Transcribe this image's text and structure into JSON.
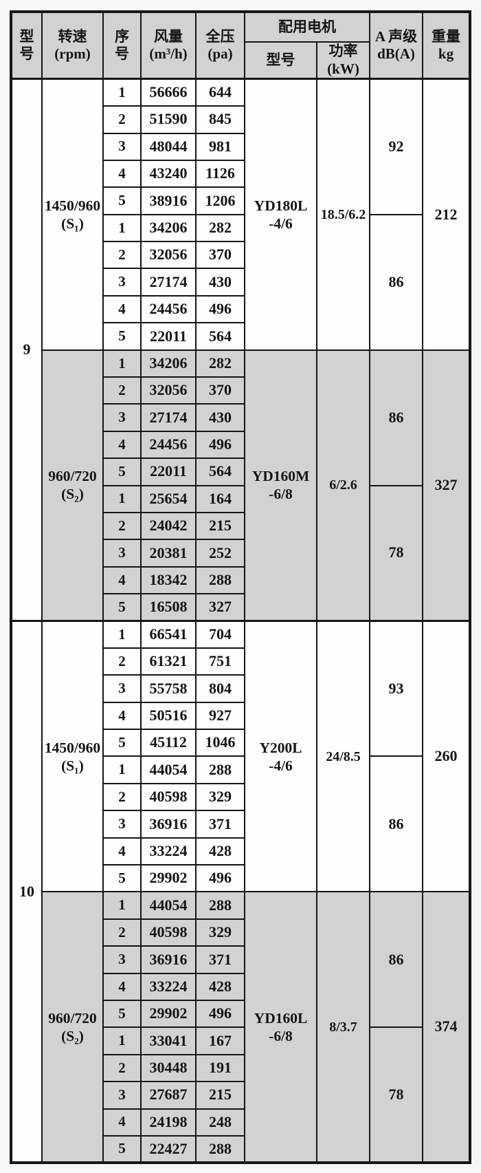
{
  "document": {
    "type": "fan-specification-table",
    "colors": {
      "border": "#151515",
      "shaded_fill": "#d2d2d2",
      "cell_fill": "#fefefe",
      "page_background": "#f6f6f5"
    }
  },
  "table": {
    "header": {
      "model": "型\n号",
      "speed": "转速\n(rpm)",
      "serial": "序\n号",
      "airflow": "风量\n(m³/h)",
      "pressure": "全压\n(pa)",
      "motor_group": "配用电机",
      "motor_model": "型号",
      "power": "功率\n(kW)",
      "noise": "A 声级\ndB(A)",
      "weight": "重量\nkg"
    },
    "models": [
      {
        "model": "9",
        "sections": [
          {
            "speed": "1450/960\n(S₁)",
            "shaded": false,
            "rows": [
              [
                "1",
                "56666",
                "644"
              ],
              [
                "2",
                "51590",
                "845"
              ],
              [
                "3",
                "48044",
                "981"
              ],
              [
                "4",
                "43240",
                "1126"
              ],
              [
                "5",
                "38916",
                "1206"
              ],
              [
                "1",
                "34206",
                "282"
              ],
              [
                "2",
                "32056",
                "370"
              ],
              [
                "3",
                "27174",
                "430"
              ],
              [
                "4",
                "24456",
                "496"
              ],
              [
                "5",
                "22011",
                "564"
              ]
            ],
            "motor": "YD180L\n-4/6",
            "power": "18.5/6.2",
            "noise": [
              "92",
              "86"
            ],
            "weight": "212"
          },
          {
            "speed": "960/720\n(S₂)",
            "shaded": true,
            "rows": [
              [
                "1",
                "34206",
                "282"
              ],
              [
                "2",
                "32056",
                "370"
              ],
              [
                "3",
                "27174",
                "430"
              ],
              [
                "4",
                "24456",
                "496"
              ],
              [
                "5",
                "22011",
                "564"
              ],
              [
                "1",
                "25654",
                "164"
              ],
              [
                "2",
                "24042",
                "215"
              ],
              [
                "3",
                "20381",
                "252"
              ],
              [
                "4",
                "18342",
                "288"
              ],
              [
                "5",
                "16508",
                "327"
              ]
            ],
            "motor": "YD160M\n-6/8",
            "power": "6/2.6",
            "noise": [
              "86",
              "78"
            ],
            "weight": "327"
          }
        ]
      },
      {
        "model": "10",
        "sections": [
          {
            "speed": "1450/960\n(S₁)",
            "shaded": false,
            "rows": [
              [
                "1",
                "66541",
                "704"
              ],
              [
                "2",
                "61321",
                "751"
              ],
              [
                "3",
                "55758",
                "804"
              ],
              [
                "4",
                "50516",
                "927"
              ],
              [
                "5",
                "45112",
                "1046"
              ],
              [
                "1",
                "44054",
                "288"
              ],
              [
                "2",
                "40598",
                "329"
              ],
              [
                "3",
                "36916",
                "371"
              ],
              [
                "4",
                "33224",
                "428"
              ],
              [
                "5",
                "29902",
                "496"
              ]
            ],
            "motor": "Y200L\n-4/6",
            "power": "24/8.5",
            "noise": [
              "93",
              "86"
            ],
            "weight": "260"
          },
          {
            "speed": "960/720\n(S₂)",
            "shaded": true,
            "rows": [
              [
                "1",
                "44054",
                "288"
              ],
              [
                "2",
                "40598",
                "329"
              ],
              [
                "3",
                "36916",
                "371"
              ],
              [
                "4",
                "33224",
                "428"
              ],
              [
                "5",
                "29902",
                "496"
              ],
              [
                "1",
                "33041",
                "167"
              ],
              [
                "2",
                "30448",
                "191"
              ],
              [
                "3",
                "27687",
                "215"
              ],
              [
                "4",
                "24198",
                "248"
              ],
              [
                "5",
                "22427",
                "288"
              ]
            ],
            "motor": "YD160L\n-6/8",
            "power": "8/3.7",
            "noise": [
              "86",
              "78"
            ],
            "weight": "374"
          }
        ]
      }
    ]
  }
}
